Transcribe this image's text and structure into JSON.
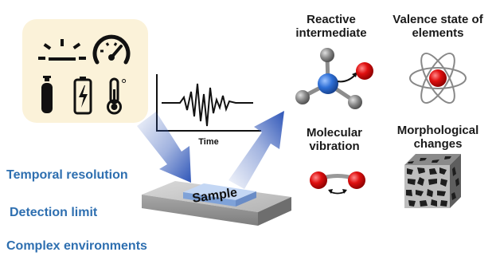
{
  "diagram": {
    "conditions_panel": {
      "icons": [
        "light-icon",
        "pressure-gauge-icon",
        "gas-cylinder-icon",
        "battery-icon",
        "thermometer-icon"
      ],
      "background_color": "#fbf2d9",
      "degree_symbol": "°"
    },
    "signal_plot": {
      "xlabel": "Time"
    },
    "sample": {
      "label": "Sample"
    },
    "challenges": [
      "Temporal resolution",
      "Detection limit",
      "Complex environments"
    ],
    "outputs": {
      "reactive_intermediate": "Reactive intermediate",
      "valence_state": "Valence state of elements",
      "molecular_vibration": "Molecular vibration",
      "morphological_changes": "Morphological changes"
    },
    "colors": {
      "challenge_text": "#2e6fb0",
      "arrow": "#2f56b8",
      "sample_top": "#a9c3ea",
      "oxygen": "#d40000",
      "nitrogen": "#2e6fd6"
    }
  }
}
